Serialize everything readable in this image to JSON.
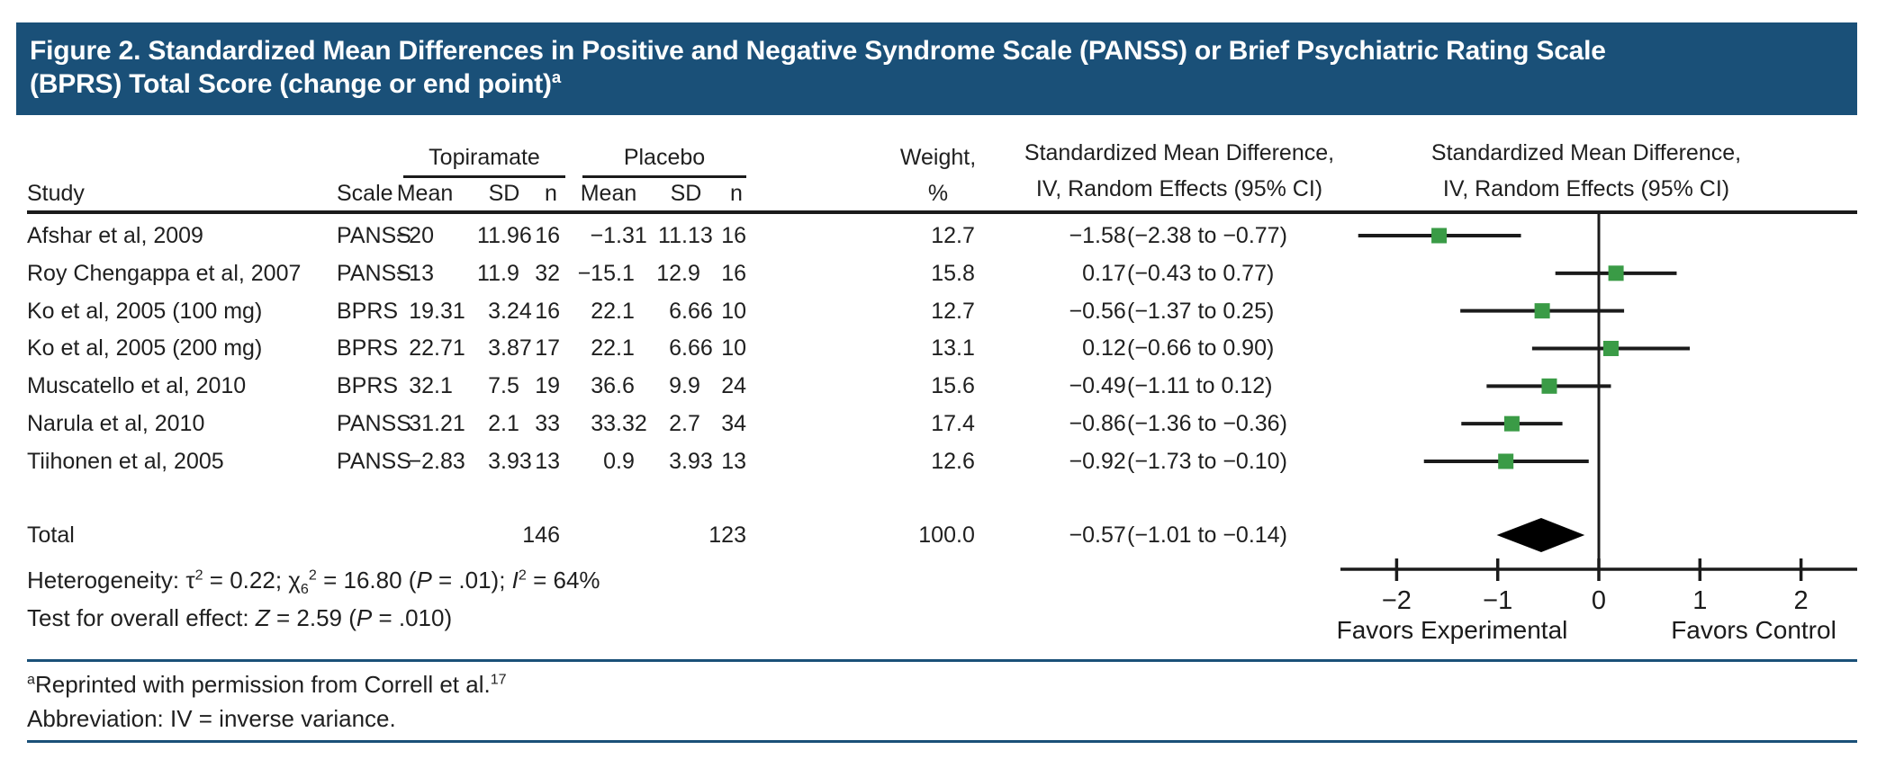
{
  "title": {
    "line1": "Figure 2. Standardized Mean Differences in Positive and Negative Syndrome Scale (PANSS) or Brief Psychiatric Rating Scale",
    "line2": "(BPRS) Total Score (change or end point)",
    "superscript": "a"
  },
  "colors": {
    "header_bg": "#1A5078",
    "rule_blue": "#1A5078",
    "marker_green": "#3A9B46",
    "line_black": "#1b1b1b"
  },
  "table": {
    "col_study": "Study",
    "col_scale": "Scale",
    "group_topiramate": "Topiramate",
    "group_placebo": "Placebo",
    "col_mean_t": "Mean",
    "col_sd_t": "SD",
    "col_n_t": "n",
    "col_mean_p": "Mean",
    "col_sd_p": "SD",
    "col_n_p": "n",
    "col_weight_line1": "Weight,",
    "col_weight_line2": "%",
    "smd_text_header_line1": "Standardized Mean Difference,",
    "smd_text_header_line2": "IV, Random Effects (95% CI)",
    "smd_plot_header_line1": "Standardized Mean Difference,",
    "smd_plot_header_line2": "IV, Random Effects (95% CI)"
  },
  "rows": [
    {
      "study": "Afshar et al, 2009",
      "scale": "PANSS",
      "t_mean": "−20",
      "t_sd": "11.96",
      "t_n": "16",
      "p_mean": "−1.31",
      "p_sd": "11.13",
      "p_n": "16",
      "weight": "12.7",
      "est": "−1.58",
      "ci": "(−2.38 to −0.77)"
    },
    {
      "study": "Roy Chengappa et al, 2007",
      "scale": "PANSS",
      "t_mean": "−13",
      "t_sd": "11.9",
      "t_n": "32",
      "p_mean": "−15.1",
      "p_sd": "12.9",
      "p_n": "16",
      "weight": "15.8",
      "est": "0.17",
      "ci": "(−0.43 to 0.77)"
    },
    {
      "study": "Ko et al, 2005 (100 mg)",
      "scale": "BPRS",
      "t_mean": "19.31",
      "t_sd": "3.24",
      "t_n": "16",
      "p_mean": "22.1",
      "p_sd": "6.66",
      "p_n": "10",
      "weight": "12.7",
      "est": "−0.56",
      "ci": "(−1.37 to 0.25)"
    },
    {
      "study": "Ko et al, 2005 (200 mg)",
      "scale": "BPRS",
      "t_mean": "22.71",
      "t_sd": "3.87",
      "t_n": "17",
      "p_mean": "22.1",
      "p_sd": "6.66",
      "p_n": "10",
      "weight": "13.1",
      "est": "0.12",
      "ci": "(−0.66 to 0.90)"
    },
    {
      "study": "Muscatello et al, 2010",
      "scale": "BPRS",
      "t_mean": "32.1",
      "t_sd": "7.5",
      "t_n": "19",
      "p_mean": "36.6",
      "p_sd": "9.9",
      "p_n": "24",
      "weight": "15.6",
      "est": "−0.49",
      "ci": "(−1.11 to 0.12)"
    },
    {
      "study": "Narula et al, 2010",
      "scale": "PANSS",
      "t_mean": "31.21",
      "t_sd": "2.1",
      "t_n": "33",
      "p_mean": "33.32",
      "p_sd": "2.7",
      "p_n": "34",
      "weight": "17.4",
      "est": "−0.86",
      "ci": "(−1.36 to −0.36)"
    },
    {
      "study": "Tiihonen et al, 2005",
      "scale": "PANSS",
      "t_mean": "−2.83",
      "t_sd": "3.93",
      "t_n": "13",
      "p_mean": "0.9",
      "p_sd": "3.93",
      "p_n": "13",
      "weight": "12.6",
      "est": "−0.92",
      "ci": "(−1.73 to −0.10)"
    }
  ],
  "total_row": {
    "label": "Total",
    "t_n": "146",
    "p_n": "123",
    "weight": "100.0",
    "est": "−0.57",
    "ci": "(−1.01 to −0.14)"
  },
  "heterogeneity_segments": [
    {
      "t": "Heterogeneity: τ"
    },
    {
      "t": "2",
      "sup": true
    },
    {
      "t": " = 0.22; χ"
    },
    {
      "t": "6",
      "sub": true
    },
    {
      "t": "2",
      "sup": true
    },
    {
      "t": " = 16.80 ("
    },
    {
      "t": "P",
      "i": true
    },
    {
      "t": " = .01); "
    },
    {
      "t": "I",
      "i": true
    },
    {
      "t": "2",
      "sup": true
    },
    {
      "t": " = 64%"
    }
  ],
  "overall_effect_segments": [
    {
      "t": "Test for overall effect: "
    },
    {
      "t": "Z",
      "i": true
    },
    {
      "t": " = 2.59 ("
    },
    {
      "t": "P",
      "i": true
    },
    {
      "t": " = .010)"
    }
  ],
  "footnote1_segments": [
    {
      "t": "a",
      "sup": true
    },
    {
      "t": "Reprinted with permission from Correll et al."
    },
    {
      "t": "17",
      "sup": true
    }
  ],
  "footnote2_segments": [
    {
      "t": "Abbreviation: IV = inverse variance."
    }
  ],
  "chart_data": {
    "type": "forest",
    "title": "Standardized Mean Difference, IV, Random Effects (95% CI)",
    "x_axis": {
      "ticks": [
        -2,
        -1,
        0,
        1,
        2
      ],
      "tick_labels": [
        "−2",
        "−1",
        "0",
        "1",
        "2"
      ],
      "range": [
        -2.55,
        2.55
      ],
      "zero_line": 0,
      "left_label": "Favors Experimental",
      "right_label": "Favors Control"
    },
    "studies": [
      {
        "name": "Afshar et al, 2009",
        "est": -1.58,
        "lo": -2.38,
        "hi": -0.77,
        "weight": 12.7
      },
      {
        "name": "Roy Chengappa et al, 2007",
        "est": 0.17,
        "lo": -0.43,
        "hi": 0.77,
        "weight": 15.8
      },
      {
        "name": "Ko et al, 2005 (100 mg)",
        "est": -0.56,
        "lo": -1.37,
        "hi": 0.25,
        "weight": 12.7
      },
      {
        "name": "Ko et al, 2005 (200 mg)",
        "est": 0.12,
        "lo": -0.66,
        "hi": 0.9,
        "weight": 13.1
      },
      {
        "name": "Muscatello et al, 2010",
        "est": -0.49,
        "lo": -1.11,
        "hi": 0.12,
        "weight": 15.6
      },
      {
        "name": "Narula et al, 2010",
        "est": -0.86,
        "lo": -1.36,
        "hi": -0.36,
        "weight": 17.4
      },
      {
        "name": "Tiihonen et al, 2005",
        "est": -0.92,
        "lo": -1.73,
        "hi": -0.1,
        "weight": 12.6
      }
    ],
    "total": {
      "est": -0.57,
      "lo": -1.01,
      "hi": -0.14,
      "weight": 100.0
    }
  }
}
